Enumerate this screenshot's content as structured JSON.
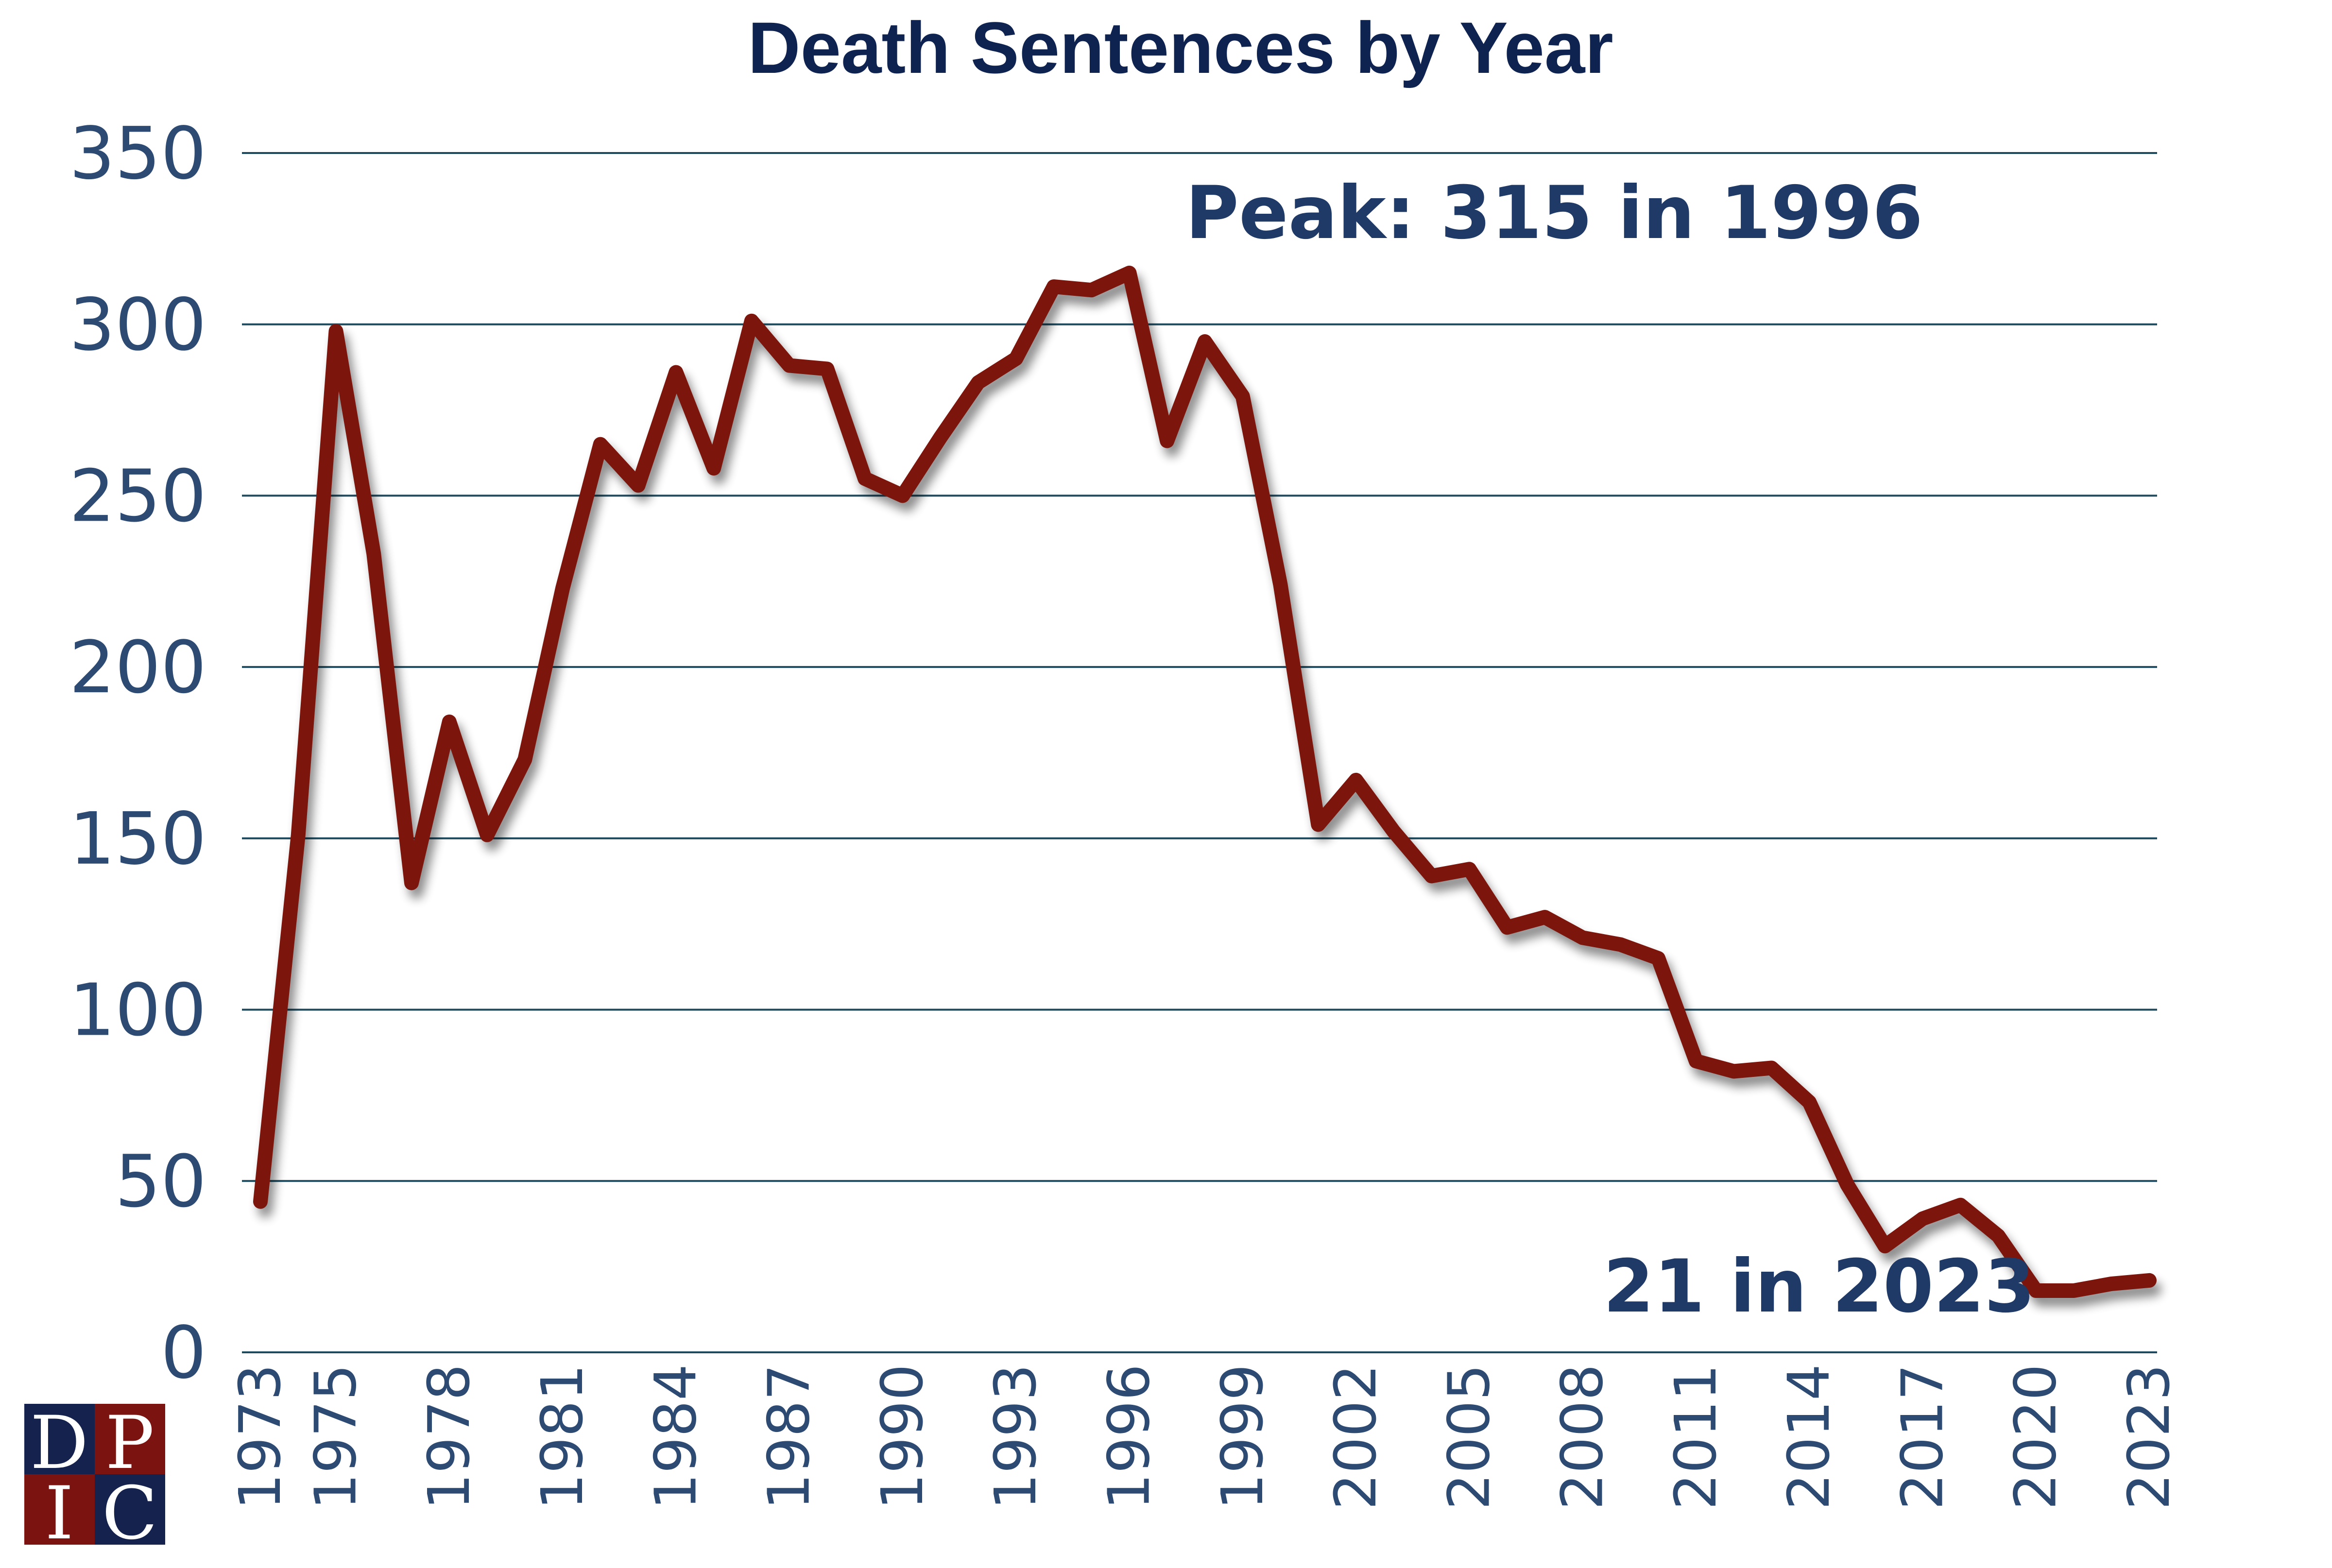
{
  "chart_data": {
    "type": "line",
    "title": "Death Sentences by Year",
    "xlabel": "",
    "ylabel": "",
    "ylim": [
      0,
      350
    ],
    "yticks": [
      0,
      50,
      100,
      150,
      200,
      250,
      300,
      350
    ],
    "xlim": [
      1973,
      2023
    ],
    "xticks": [
      1973,
      1975,
      1978,
      1981,
      1984,
      1987,
      1990,
      1993,
      1996,
      1999,
      2002,
      2005,
      2008,
      2011,
      2014,
      2017,
      2020,
      2023
    ],
    "grid": true,
    "legend": "none",
    "series": [
      {
        "color": "#7b1410",
        "x": [
          1973,
          1974,
          1975,
          1976,
          1977,
          1978,
          1979,
          1980,
          1981,
          1982,
          1983,
          1984,
          1985,
          1986,
          1987,
          1988,
          1989,
          1990,
          1991,
          1992,
          1993,
          1994,
          1995,
          1996,
          1997,
          1998,
          1999,
          2000,
          2001,
          2002,
          2003,
          2004,
          2005,
          2006,
          2007,
          2008,
          2009,
          2010,
          2011,
          2012,
          2013,
          2014,
          2015,
          2016,
          2017,
          2018,
          2019,
          2020,
          2021,
          2022,
          2023
        ],
        "values": [
          44,
          151,
          298,
          233,
          137,
          184,
          151,
          173,
          223,
          265,
          253,
          286,
          258,
          301,
          288,
          287,
          255,
          250,
          267,
          283,
          290,
          311,
          310,
          315,
          266,
          295,
          279,
          224,
          154,
          167,
          152,
          139,
          141,
          124,
          127,
          121,
          119,
          115,
          85,
          82,
          83,
          73,
          49,
          31,
          39,
          43,
          34,
          18,
          18,
          20,
          21
        ]
      }
    ],
    "annotations": [
      {
        "text": "Peak: 315 in 1996"
      },
      {
        "text": "21 in 2023"
      }
    ]
  },
  "logo": {
    "letters": [
      "D",
      "P",
      "I",
      "C"
    ]
  },
  "colors": {
    "line": "#7b1410",
    "grid": "#1f4a5e",
    "title": "#0f2350",
    "ticks": "#2d4a72",
    "logo_red": "#7b1410",
    "logo_navy": "#14224d"
  }
}
